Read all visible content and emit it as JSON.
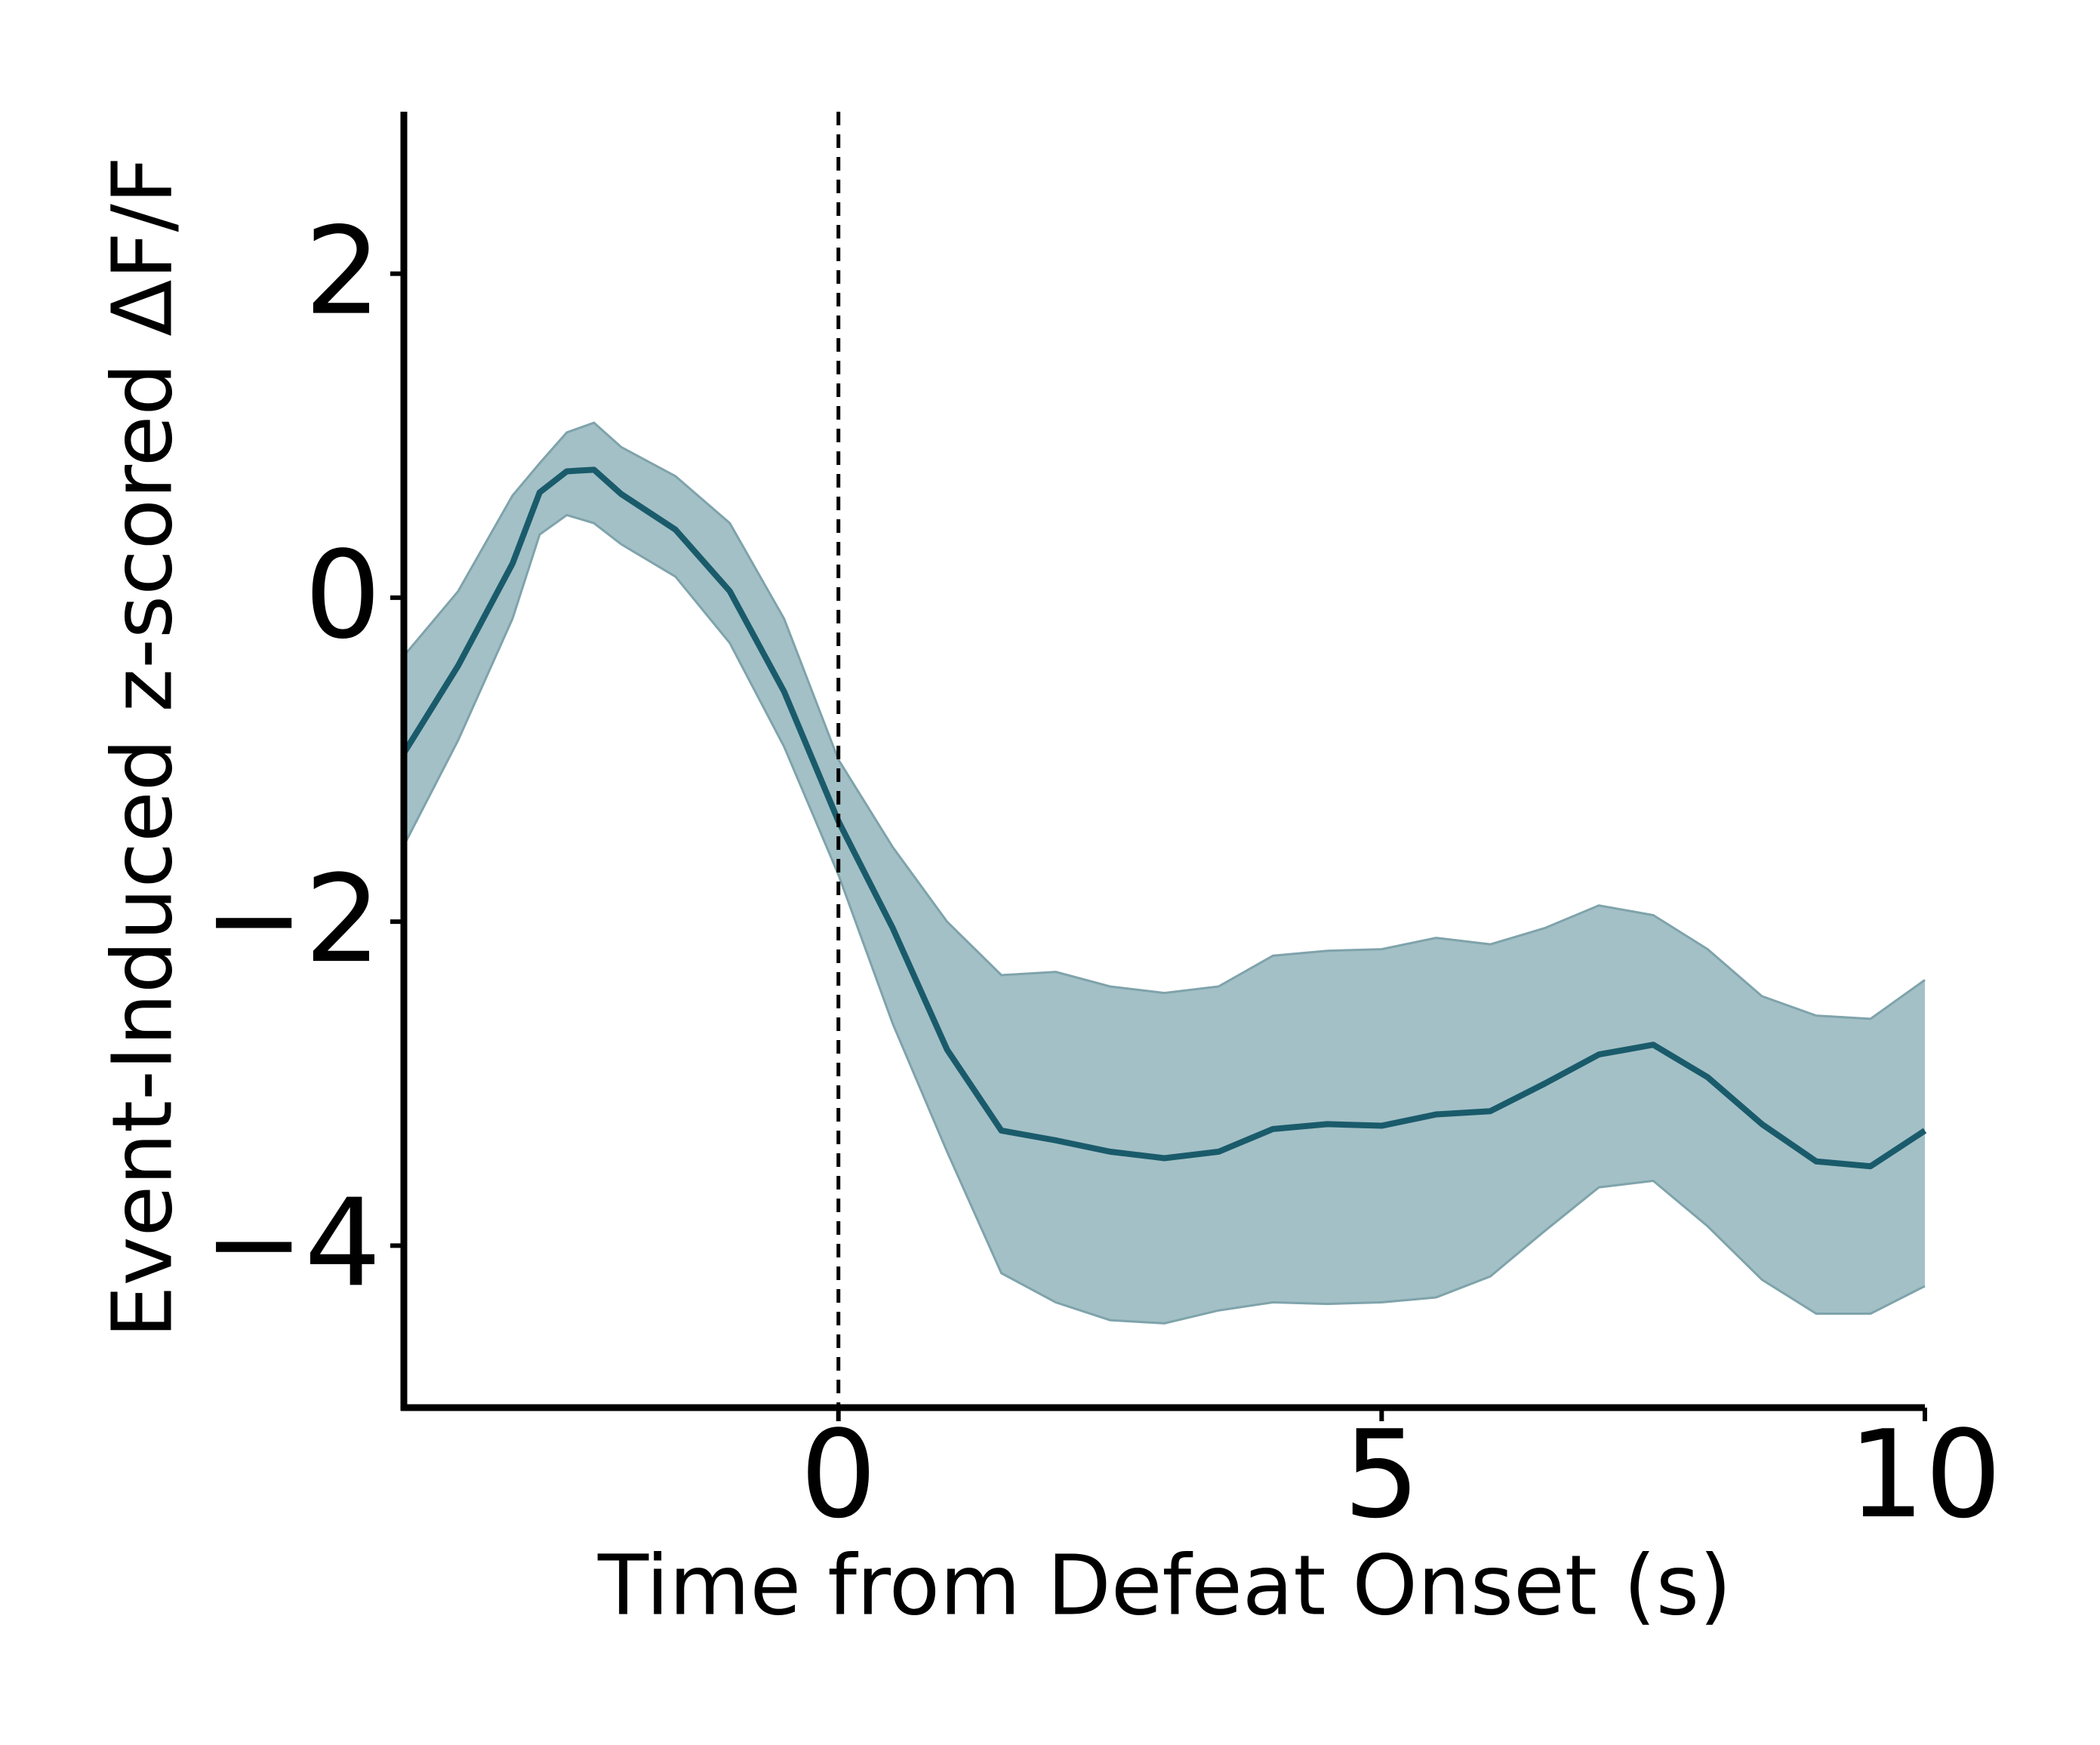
{
  "chart_data": {
    "type": "line",
    "xlabel": "Time from Defeat Onset (s)",
    "ylabel": "Event-Induced z-scored ΔF/F",
    "x": [
      -4,
      -3.5,
      -3,
      -2.75,
      -2.5,
      -2.25,
      -2,
      -1.5,
      -1,
      -0.5,
      0,
      0.5,
      1,
      1.5,
      2,
      2.5,
      3,
      3.5,
      4,
      4.5,
      5,
      5.5,
      6,
      6.5,
      7,
      7.5,
      8,
      8.5,
      9,
      9.5,
      10
    ],
    "values": [
      -0.96,
      -0.42,
      0.21,
      0.65,
      0.78,
      0.79,
      0.64,
      0.42,
      0.04,
      -0.58,
      -1.38,
      -2.04,
      -2.79,
      -3.29,
      -3.35,
      -3.42,
      -3.46,
      -3.42,
      -3.28,
      -3.25,
      -3.26,
      -3.19,
      -3.17,
      -3.0,
      -2.82,
      -2.76,
      -2.96,
      -3.25,
      -3.48,
      -3.51,
      -3.29
    ],
    "band_upper": [
      -0.36,
      0.04,
      0.63,
      0.83,
      1.02,
      1.08,
      0.93,
      0.75,
      0.46,
      -0.13,
      -1.0,
      -1.54,
      -2.0,
      -2.33,
      -2.31,
      -2.4,
      -2.44,
      -2.4,
      -2.21,
      -2.18,
      -2.17,
      -2.1,
      -2.14,
      -2.04,
      -1.9,
      -1.96,
      -2.17,
      -2.46,
      -2.58,
      -2.6,
      -2.36
    ],
    "band_lower": [
      -1.53,
      -0.88,
      -0.13,
      0.39,
      0.51,
      0.46,
      0.33,
      0.13,
      -0.28,
      -0.92,
      -1.71,
      -2.63,
      -3.42,
      -4.17,
      -4.35,
      -4.46,
      -4.48,
      -4.4,
      -4.35,
      -4.36,
      -4.35,
      -4.32,
      -4.19,
      -3.91,
      -3.64,
      -3.6,
      -3.88,
      -4.21,
      -4.42,
      -4.42,
      -4.25
    ],
    "color": "#1a5b6b",
    "band_color": "#a3c0c6",
    "band_edge_color": "#7fa3ab",
    "vline": 0,
    "xlim": [
      -4,
      10
    ],
    "xticks": [
      0,
      5,
      10
    ],
    "ylim": [
      -5,
      3
    ],
    "yticks": [
      {
        "value": -4,
        "label": "−4"
      },
      {
        "value": -2,
        "label": "−2"
      },
      0,
      2
    ]
  }
}
